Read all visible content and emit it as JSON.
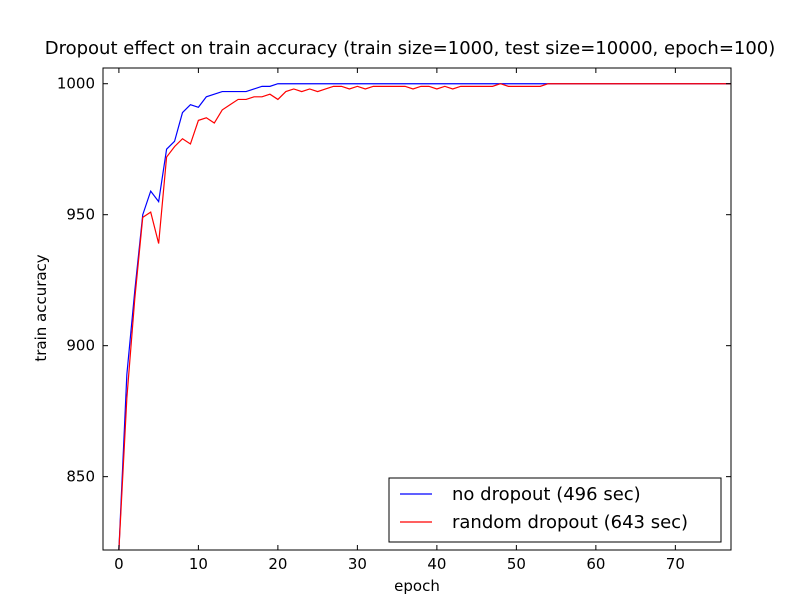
{
  "chart_data": {
    "type": "line",
    "title": "Dropout effect on train accuracy (train size=1000, test size=10000, epoch=100)",
    "xlabel": "epoch",
    "ylabel": "train accuracy",
    "xlim": [
      -2,
      77
    ],
    "ylim": [
      822,
      1006
    ],
    "xticks": [
      0,
      10,
      20,
      30,
      40,
      50,
      60,
      70
    ],
    "yticks": [
      850,
      900,
      950,
      1000
    ],
    "grid": false,
    "legend_position": "lower-right",
    "series": [
      {
        "name": "no dropout (496 sec)",
        "color": "#0000ff",
        "x": [
          0,
          1,
          2,
          3,
          4,
          5,
          6,
          7,
          8,
          9,
          10,
          11,
          12,
          13,
          14,
          15,
          16,
          17,
          18,
          19,
          20,
          21,
          22,
          23,
          24,
          25,
          26,
          27,
          28,
          29,
          30,
          31,
          32,
          33,
          34,
          35,
          36,
          37,
          38,
          39,
          40,
          41,
          42,
          43,
          44,
          45,
          46,
          47,
          48,
          49,
          50,
          51,
          52,
          53,
          54,
          55,
          56,
          57,
          58,
          59,
          60,
          61,
          62,
          63,
          64,
          65,
          66,
          67,
          68,
          69,
          70,
          71,
          72,
          73,
          74,
          75,
          76,
          77
        ],
        "y": [
          822,
          889,
          921,
          950,
          959,
          955,
          975,
          978,
          989,
          992,
          991,
          995,
          996,
          997,
          997,
          997,
          997,
          998,
          999,
          999,
          1000,
          1000,
          1000,
          1000,
          1000,
          1000,
          1000,
          1000,
          1000,
          1000,
          1000,
          1000,
          1000,
          1000,
          1000,
          1000,
          1000,
          1000,
          1000,
          1000,
          1000,
          1000,
          1000,
          1000,
          1000,
          1000,
          1000,
          1000,
          1000,
          1000,
          1000,
          1000,
          1000,
          1000,
          1000,
          1000,
          1000,
          1000,
          1000,
          1000,
          1000,
          1000,
          1000,
          1000,
          1000,
          1000,
          1000,
          1000,
          1000,
          1000,
          1000,
          1000,
          1000,
          1000,
          1000,
          1000,
          1000,
          1000
        ]
      },
      {
        "name": "random dropout (643 sec)",
        "color": "#ff0000",
        "x": [
          0,
          1,
          2,
          3,
          4,
          5,
          6,
          7,
          8,
          9,
          10,
          11,
          12,
          13,
          14,
          15,
          16,
          17,
          18,
          19,
          20,
          21,
          22,
          23,
          24,
          25,
          26,
          27,
          28,
          29,
          30,
          31,
          32,
          33,
          34,
          35,
          36,
          37,
          38,
          39,
          40,
          41,
          42,
          43,
          44,
          45,
          46,
          47,
          48,
          49,
          50,
          51,
          52,
          53,
          54,
          55,
          56,
          57,
          58,
          59,
          60,
          61,
          62,
          63,
          64,
          65,
          66,
          67,
          68,
          69,
          70,
          71,
          72,
          73,
          74,
          75,
          76,
          77
        ],
        "y": [
          822,
          880,
          918,
          949,
          951,
          939,
          972,
          976,
          979,
          977,
          986,
          987,
          985,
          990,
          992,
          994,
          994,
          995,
          995,
          996,
          994,
          997,
          998,
          997,
          998,
          997,
          998,
          999,
          999,
          998,
          999,
          998,
          999,
          999,
          999,
          999,
          999,
          998,
          999,
          999,
          998,
          999,
          998,
          999,
          999,
          999,
          999,
          999,
          1000,
          999,
          999,
          999,
          999,
          999,
          1000,
          1000,
          1000,
          1000,
          1000,
          1000,
          1000,
          1000,
          1000,
          1000,
          1000,
          1000,
          1000,
          1000,
          1000,
          1000,
          1000,
          1000,
          1000,
          1000,
          1000,
          1000,
          1000,
          1000
        ]
      }
    ]
  }
}
